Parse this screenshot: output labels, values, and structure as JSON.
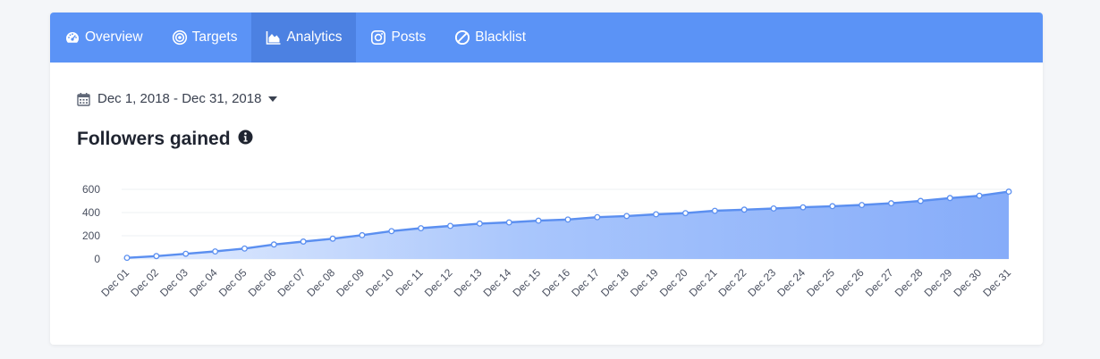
{
  "tabs": [
    {
      "label": "Overview",
      "icon": "dashboard-icon",
      "active": false
    },
    {
      "label": "Targets",
      "icon": "target-icon",
      "active": false
    },
    {
      "label": "Analytics",
      "icon": "area-chart-icon",
      "active": true
    },
    {
      "label": "Posts",
      "icon": "instagram-icon",
      "active": false
    },
    {
      "label": "Blacklist",
      "icon": "ban-icon",
      "active": false
    }
  ],
  "date_range": {
    "label": "Dec 1, 2018 - Dec 31, 2018",
    "icon": "calendar-icon"
  },
  "section": {
    "title": "Followers gained",
    "info_icon": "info-circle-icon"
  },
  "colors": {
    "tabbar": "#5b93f6",
    "tab_active": "#4c81e2",
    "line": "#5b8ff0",
    "fill_light": "#dfe9fe",
    "fill_dark": "#8fb3fb"
  },
  "chart_data": {
    "type": "area",
    "title": "",
    "xlabel": "",
    "ylabel": "",
    "ylim": [
      0,
      600
    ],
    "yticks": [
      0,
      200,
      400,
      600
    ],
    "grid": true,
    "categories": [
      "Dec 01",
      "Dec 02",
      "Dec 03",
      "Dec 04",
      "Dec 05",
      "Dec 06",
      "Dec 07",
      "Dec 08",
      "Dec 09",
      "Dec 10",
      "Dec 11",
      "Dec 12",
      "Dec 13",
      "Dec 14",
      "Dec 15",
      "Dec 16",
      "Dec 17",
      "Dec 18",
      "Dec 19",
      "Dec 20",
      "Dec 21",
      "Dec 22",
      "Dec 23",
      "Dec 24",
      "Dec 25",
      "Dec 26",
      "Dec 27",
      "Dec 28",
      "Dec 29",
      "Dec 30",
      "Dec 31"
    ],
    "series": [
      {
        "values": [
          10,
          25,
          45,
          65,
          90,
          125,
          150,
          175,
          205,
          240,
          265,
          285,
          305,
          315,
          330,
          340,
          360,
          370,
          385,
          395,
          415,
          425,
          435,
          445,
          455,
          465,
          480,
          500,
          525,
          545,
          580
        ]
      }
    ]
  }
}
